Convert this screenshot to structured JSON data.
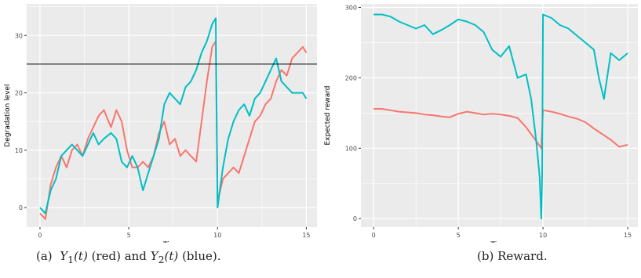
{
  "chart_data": [
    {
      "type": "line",
      "xlabel": "Time",
      "ylabel": "Degradation level",
      "xlim": [
        -0.75,
        15.6
      ],
      "ylim": [
        -3.4,
        35.5
      ],
      "xticks": [
        0,
        5,
        10,
        15
      ],
      "yticks": [
        0,
        10,
        20,
        30
      ],
      "grid": true,
      "hline": 25,
      "hline_color": "#000000",
      "series": [
        {
          "color": "#F8766D",
          "x": [
            0,
            0.3,
            0.6,
            0.9,
            1.2,
            1.5,
            1.8,
            2.1,
            2.4,
            2.7,
            3.0,
            3.3,
            3.6,
            4.0,
            4.3,
            4.6,
            4.9,
            5.2,
            5.5,
            5.8,
            6.1,
            6.4,
            6.7,
            7.0,
            7.3,
            7.6,
            7.9,
            8.2,
            8.5,
            8.8,
            9.1,
            9.4,
            9.7,
            9.9,
            10.0,
            10.3,
            10.6,
            10.9,
            11.2,
            11.5,
            11.8,
            12.1,
            12.4,
            12.7,
            13.0,
            13.3,
            13.6,
            13.9,
            14.2,
            14.5,
            14.8,
            15.0
          ],
          "values": [
            -1,
            -2,
            4,
            7,
            9,
            7,
            10,
            11,
            9,
            12,
            14,
            16,
            17,
            14,
            17,
            15,
            10,
            7,
            7,
            8,
            7,
            9,
            13,
            15,
            11,
            12,
            9,
            10,
            9,
            8,
            15,
            22,
            28,
            29,
            1,
            5,
            6,
            7,
            6,
            9,
            12,
            15,
            16,
            18,
            19,
            22,
            24,
            23,
            26,
            27,
            28,
            27
          ]
        },
        {
          "color": "#00BFC4",
          "x": [
            0,
            0.3,
            0.6,
            0.9,
            1.2,
            1.5,
            1.8,
            2.1,
            2.4,
            2.7,
            3.0,
            3.3,
            3.6,
            4.0,
            4.3,
            4.6,
            4.9,
            5.2,
            5.5,
            5.8,
            6.1,
            6.4,
            6.7,
            7.0,
            7.3,
            7.6,
            7.9,
            8.2,
            8.5,
            8.8,
            9.1,
            9.4,
            9.7,
            9.9,
            10.0,
            10.3,
            10.6,
            10.9,
            11.2,
            11.5,
            11.8,
            12.1,
            12.4,
            12.7,
            13.0,
            13.3,
            13.6,
            13.9,
            14.2,
            14.5,
            14.8,
            15.0
          ],
          "values": [
            0,
            -1,
            3,
            5,
            9,
            10,
            11,
            10,
            9,
            11,
            13,
            11,
            12,
            13,
            12,
            8,
            7,
            9,
            7,
            3,
            6,
            9,
            12,
            18,
            20,
            19,
            18,
            21,
            22,
            24,
            27,
            29,
            32,
            33,
            0,
            7,
            12,
            15,
            17,
            18,
            16,
            19,
            20,
            22,
            24,
            26,
            22,
            21,
            20,
            20,
            20,
            19
          ]
        }
      ]
    },
    {
      "type": "line",
      "xlabel": "Time",
      "ylabel": "Expected reward",
      "xlim": [
        -0.75,
        15.6
      ],
      "ylim": [
        -12,
        305
      ],
      "xticks": [
        0,
        5,
        10,
        15
      ],
      "yticks": [
        0,
        100,
        200,
        300
      ],
      "grid": true,
      "series": [
        {
          "color": "#F8766D",
          "x": [
            0,
            0.5,
            1.0,
            1.5,
            2.0,
            2.5,
            3.0,
            3.5,
            4.0,
            4.5,
            5.0,
            5.5,
            6.0,
            6.5,
            7.0,
            7.5,
            8.0,
            8.5,
            9.0,
            9.3,
            9.6,
            9.9,
            10.0,
            10.5,
            11.0,
            11.5,
            12.0,
            12.5,
            13.0,
            13.5,
            14.0,
            14.5,
            15.0
          ],
          "values": [
            156,
            156,
            154,
            152,
            151,
            150,
            148,
            147,
            145,
            144,
            149,
            152,
            150,
            148,
            149,
            148,
            146,
            143,
            130,
            120,
            110,
            100,
            154,
            152,
            149,
            145,
            142,
            137,
            128,
            120,
            112,
            102,
            105
          ]
        },
        {
          "color": "#00BFC4",
          "x": [
            0,
            0.5,
            1.0,
            1.5,
            2.0,
            2.5,
            3.0,
            3.5,
            4.0,
            4.5,
            5.0,
            5.5,
            6.0,
            6.5,
            7.0,
            7.5,
            8.0,
            8.5,
            9.0,
            9.3,
            9.6,
            9.8,
            9.9,
            9.95,
            10.0,
            10.5,
            11.0,
            11.5,
            12.0,
            12.5,
            13.0,
            13.3,
            13.6,
            14.0,
            14.5,
            15.0
          ],
          "values": [
            290,
            290,
            287,
            280,
            275,
            270,
            275,
            262,
            268,
            275,
            283,
            280,
            275,
            265,
            240,
            230,
            245,
            200,
            205,
            170,
            110,
            60,
            0,
            60,
            290,
            285,
            275,
            270,
            260,
            250,
            240,
            200,
            170,
            235,
            225,
            235
          ]
        }
      ]
    }
  ],
  "captions": {
    "a": {
      "label": "(a)",
      "y1": "Y",
      "y1_sub": "1",
      "y1_arg": "(t)",
      "y1_color": "(red) and",
      "y2": "Y",
      "y2_sub": "2",
      "y2_arg": "(t)",
      "y2_color": "(blue)."
    },
    "b": {
      "label": "(b)",
      "text": "Reward."
    }
  }
}
